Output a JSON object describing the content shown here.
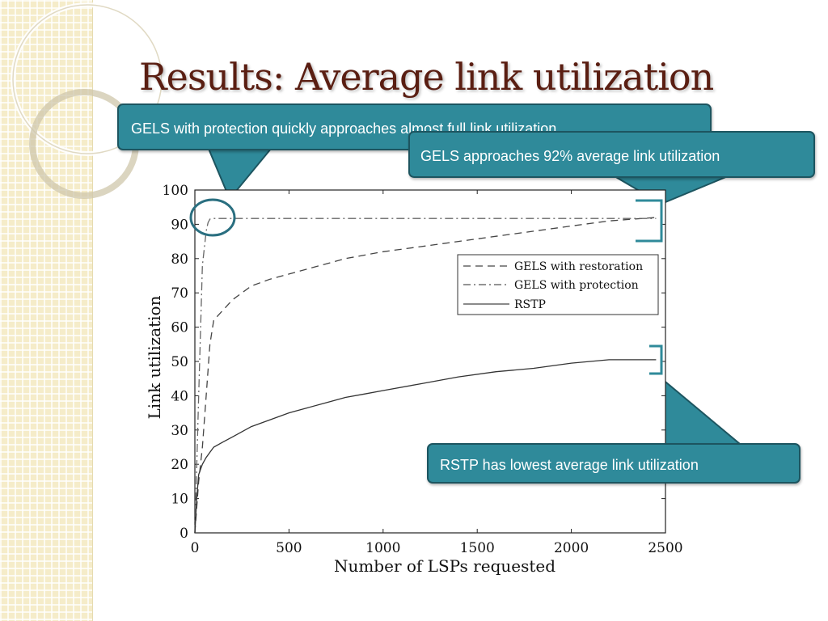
{
  "slide": {
    "title": "Results: Average link utilization"
  },
  "callouts": {
    "protection": "GELS with protection quickly approaches almost full link utilization",
    "gels": "GELS approaches 92% average link utilization",
    "rstp": "RSTP has lowest average link utilization"
  },
  "colors": {
    "callout_fill": "#2f8a9a",
    "callout_border": "#1d5560",
    "title": "#5a1e12",
    "strip": "#f5ecc9"
  },
  "chart_data": {
    "type": "line",
    "title": "",
    "xlabel": "Number of LSPs requested",
    "ylabel": "Link utilization",
    "xlim": [
      0,
      2500
    ],
    "ylim": [
      0,
      100
    ],
    "xticks": [
      0,
      500,
      1000,
      1500,
      2000,
      2500
    ],
    "yticks": [
      0,
      10,
      20,
      30,
      40,
      50,
      60,
      70,
      80,
      90,
      100
    ],
    "grid": false,
    "legend_position": "right",
    "series": [
      {
        "name": "GELS with restoration",
        "style": "dashed",
        "x": [
          0,
          20,
          40,
          60,
          80,
          100,
          150,
          200,
          300,
          400,
          500,
          600,
          800,
          1000,
          1200,
          1400,
          1600,
          1800,
          2000,
          2200,
          2450
        ],
        "y": [
          0,
          15,
          25,
          40,
          55,
          62,
          65,
          68,
          72,
          74,
          75.5,
          77,
          80,
          82,
          83.5,
          85,
          86.5,
          88,
          89.5,
          91,
          92
        ]
      },
      {
        "name": "GELS with protection",
        "style": "dash-dot",
        "x": [
          0,
          20,
          40,
          60,
          70,
          80,
          100,
          500,
          1000,
          1500,
          2000,
          2450
        ],
        "y": [
          0,
          40,
          78,
          88,
          90.5,
          91.5,
          91.7,
          91.7,
          91.7,
          91.7,
          91.7,
          91.7
        ]
      },
      {
        "name": "RSTP",
        "style": "solid",
        "x": [
          0,
          10,
          20,
          40,
          60,
          80,
          100,
          150,
          200,
          300,
          400,
          500,
          600,
          700,
          800,
          900,
          1000,
          1200,
          1400,
          1600,
          1800,
          2000,
          2200,
          2450
        ],
        "y": [
          0,
          10,
          17,
          20,
          22,
          23.5,
          25,
          26.5,
          28,
          31,
          33,
          35,
          36.5,
          38,
          39.5,
          40.5,
          41.5,
          43.5,
          45.5,
          47,
          48,
          49.5,
          50.5,
          50.5
        ]
      }
    ]
  }
}
